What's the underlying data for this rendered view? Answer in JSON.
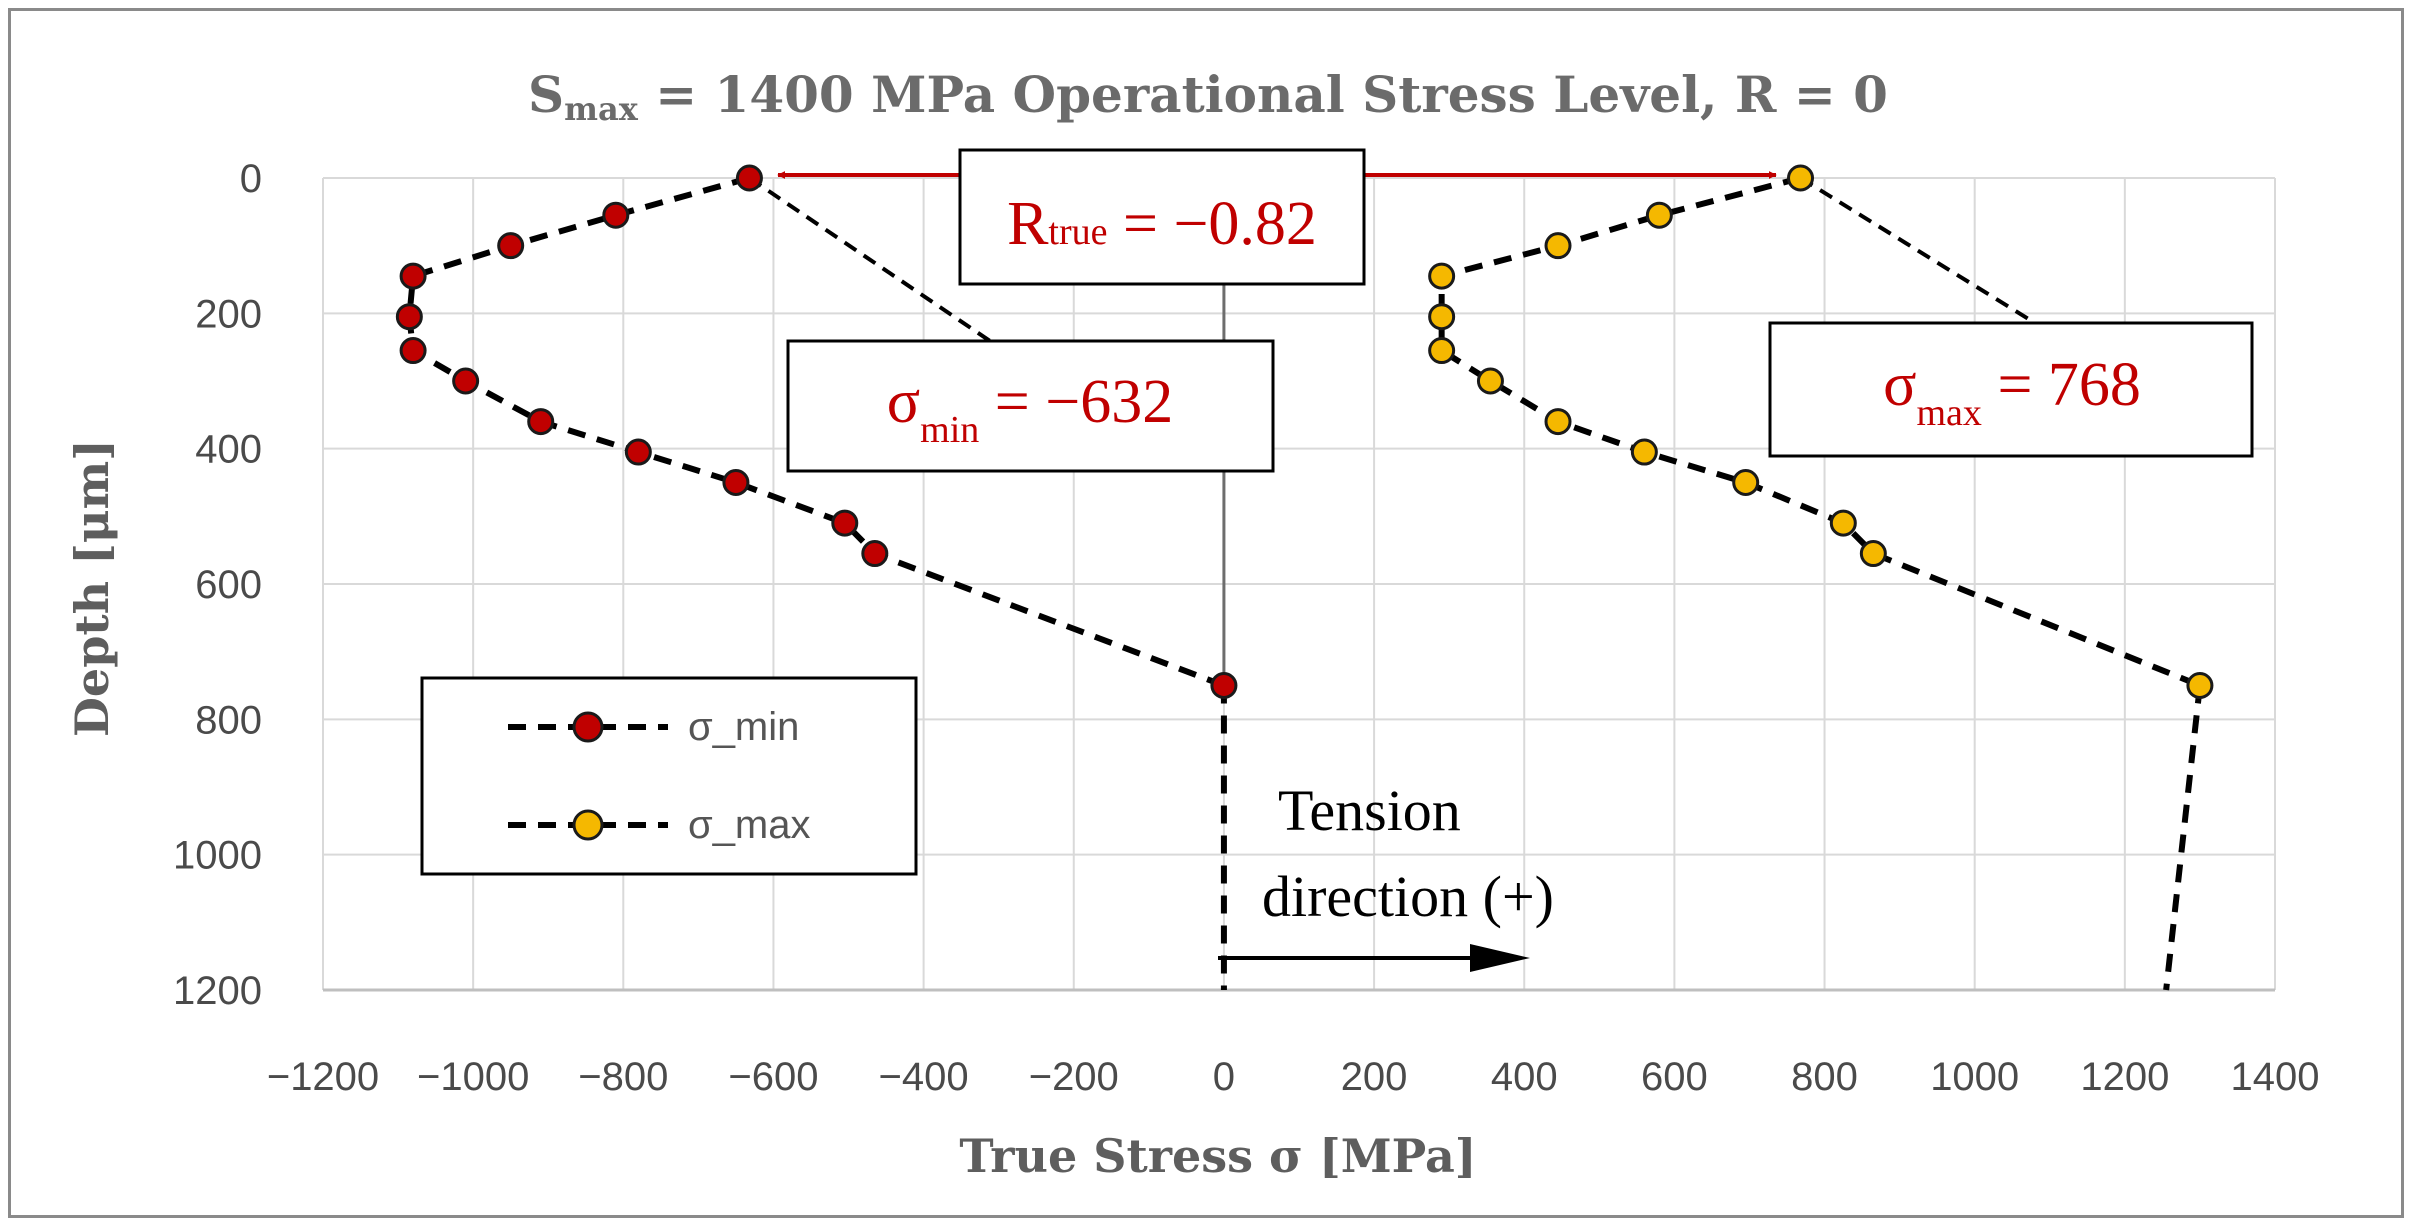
{
  "chart_data": {
    "type": "scatter",
    "title": {
      "prefix": "S",
      "subscript": "max",
      "suffix": " = 1400 MPa Operational Stress Level, R = 0"
    },
    "xlabel": "True Stress σ [MPa]",
    "ylabel": "Depth [μm]",
    "xlim": [
      -1200,
      1400
    ],
    "ylim": [
      1200,
      0
    ],
    "x_ticks": [
      -1200,
      -1000,
      -800,
      -600,
      -400,
      -200,
      0,
      200,
      400,
      600,
      800,
      1000,
      1200,
      1400
    ],
    "x_tick_labels": [
      "−1200",
      "−1000",
      "−800",
      "−600",
      "−400",
      "−200",
      "0",
      "200",
      "400",
      "600",
      "800",
      "1000",
      "1200",
      "1400"
    ],
    "y_ticks": [
      0,
      200,
      400,
      600,
      800,
      1000,
      1200
    ],
    "y_tick_labels": [
      "0",
      "200",
      "400",
      "600",
      "800",
      "1000",
      "1200"
    ],
    "grid": true,
    "series": [
      {
        "name": "σ_min",
        "color": "#c00000",
        "points": [
          {
            "x": -632,
            "y": 0
          },
          {
            "x": -810,
            "y": 55
          },
          {
            "x": -950,
            "y": 100
          },
          {
            "x": -1080,
            "y": 145
          },
          {
            "x": -1085,
            "y": 205
          },
          {
            "x": -1080,
            "y": 255
          },
          {
            "x": -1010,
            "y": 300
          },
          {
            "x": -910,
            "y": 360
          },
          {
            "x": -780,
            "y": 405
          },
          {
            "x": -650,
            "y": 450
          },
          {
            "x": -505,
            "y": 510
          },
          {
            "x": -465,
            "y": 555
          },
          {
            "x": 0,
            "y": 750
          }
        ],
        "tail": {
          "x": 0,
          "y": 1200
        }
      },
      {
        "name": "σ_max",
        "color": "#f5b800",
        "points": [
          {
            "x": 768,
            "y": 0
          },
          {
            "x": 580,
            "y": 55
          },
          {
            "x": 445,
            "y": 100
          },
          {
            "x": 290,
            "y": 145
          },
          {
            "x": 290,
            "y": 205
          },
          {
            "x": 290,
            "y": 255
          },
          {
            "x": 355,
            "y": 300
          },
          {
            "x": 445,
            "y": 360
          },
          {
            "x": 560,
            "y": 405
          },
          {
            "x": 695,
            "y": 450
          },
          {
            "x": 825,
            "y": 510
          },
          {
            "x": 865,
            "y": 555
          },
          {
            "x": 1300,
            "y": 750
          }
        ],
        "tail": {
          "x": 1255,
          "y": 1200
        }
      }
    ],
    "annotations": {
      "r_true": {
        "prefix": "R",
        "subscript": "true",
        "value": " = −0.82"
      },
      "sigma_min": {
        "symbol": "σ",
        "subscript": "min",
        "value": " = −632"
      },
      "sigma_max": {
        "symbol": "σ",
        "subscript": "max",
        "value": " = 768"
      },
      "tension_line1": "Tension",
      "tension_line2": "direction (+)"
    }
  }
}
